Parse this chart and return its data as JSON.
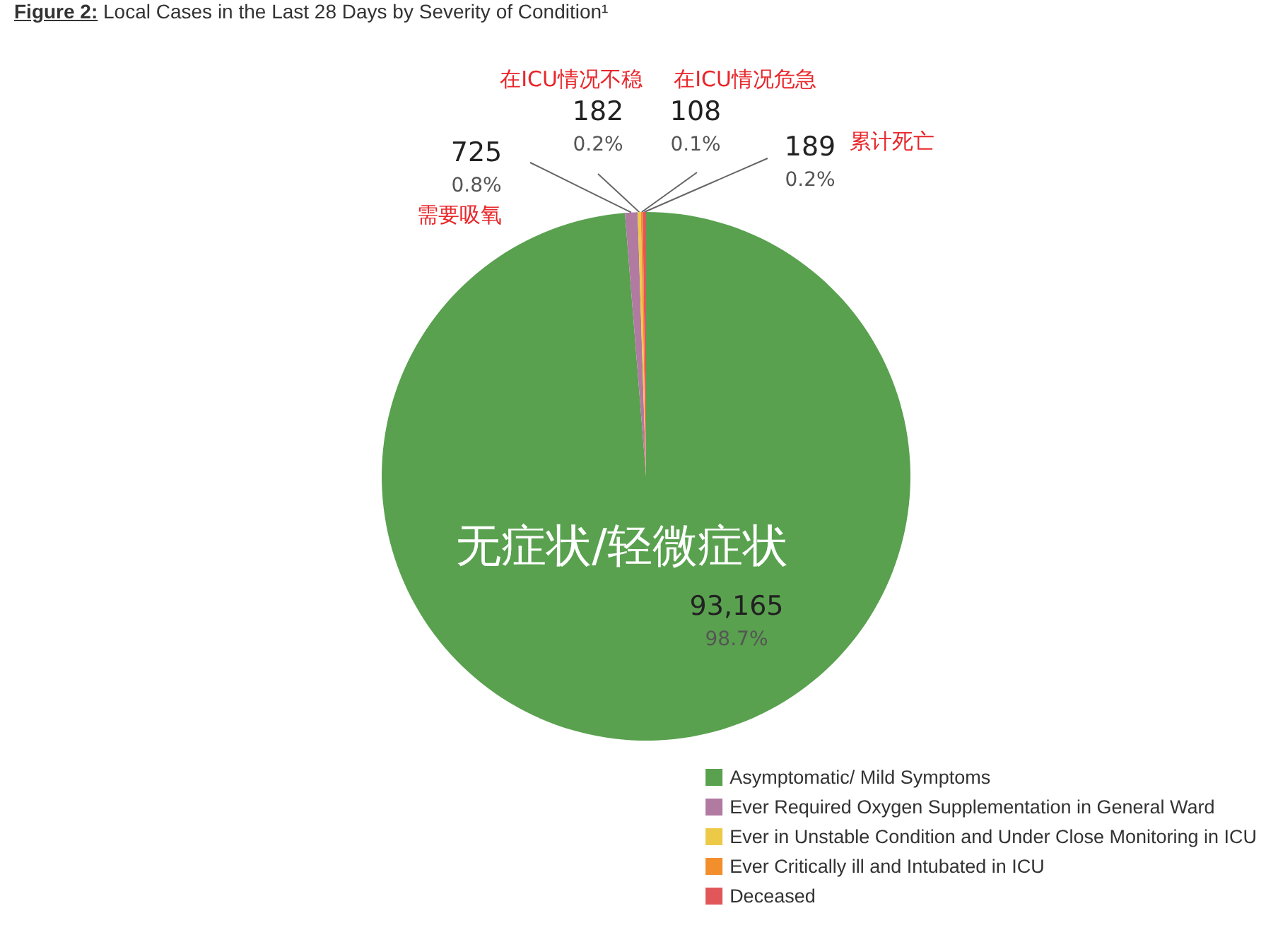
{
  "chart_data": {
    "type": "pie",
    "title": "Figure 2: Local Cases in the Last 28 Days by Severity of Condition¹",
    "categories": [
      "Asymptomatic/ Mild Symptoms",
      "Ever Required Oxygen Supplementation in General Ward",
      "Ever in Unstable Condition and Under Close Monitoring in ICU",
      "Ever Critically ill and Intubated in ICU",
      "Deceased"
    ],
    "values": [
      93165,
      725,
      182,
      108,
      189
    ],
    "colors": [
      "#59a14f",
      "#b07aa1",
      "#edc948",
      "#f28e2b",
      "#e15759"
    ],
    "value_labels": [
      "93,165\n98.7%",
      "725\n0.8%",
      "182\n0.2%",
      "108\n0.1%",
      "189\n0.2%"
    ],
    "annotations": [
      "无症状/轻微症状",
      "需要吸氧",
      "在ICU情况不稳",
      "在ICU情况危急",
      "累计死亡"
    ],
    "legend": "bottom right"
  }
}
